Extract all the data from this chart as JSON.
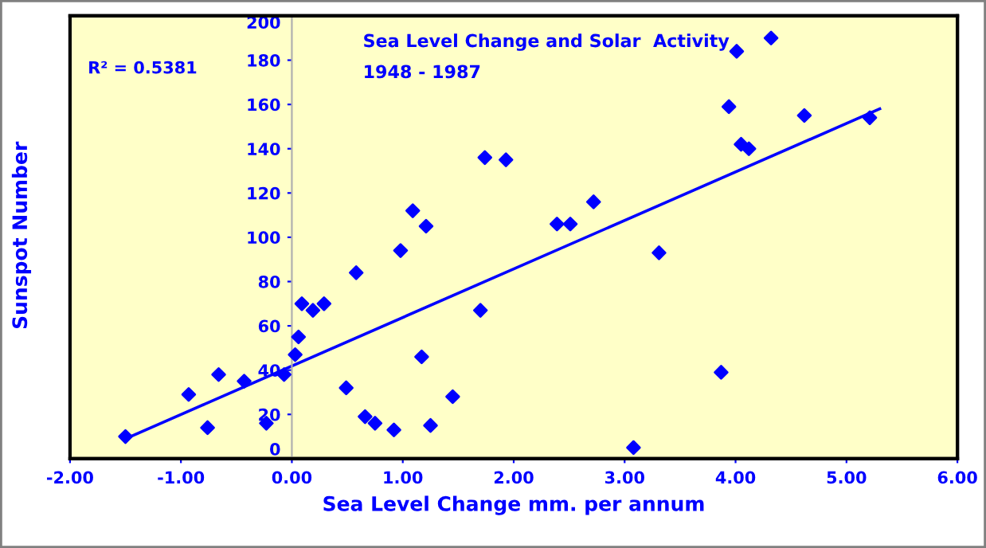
{
  "chart_data": {
    "type": "scatter",
    "title": "Sea Level Change and Solar  Activity",
    "subtitle": "1948 - 1987",
    "xlabel": "Sea Level Change mm. per annum",
    "ylabel": "Sunspot Number",
    "annotations": [
      "R² = 0.5381"
    ],
    "series": [
      {
        "type": "scatter",
        "color": "#0000ff",
        "marker": "diamond",
        "x": [
          -1.5,
          -0.93,
          -0.76,
          -0.66,
          -0.43,
          -0.23,
          -0.07,
          0.03,
          0.06,
          0.09,
          0.19,
          0.29,
          0.49,
          0.58,
          0.66,
          0.75,
          0.92,
          0.98,
          1.09,
          1.17,
          1.21,
          1.25,
          1.45,
          1.7,
          1.74,
          1.93,
          2.39,
          2.51,
          2.72,
          3.31,
          3.08,
          3.87,
          3.94,
          4.01,
          4.05,
          4.12,
          4.32,
          4.62,
          5.21
        ],
        "values": [
          10,
          29,
          14,
          38,
          35,
          16,
          38,
          47,
          55,
          70,
          67,
          70,
          32,
          84,
          19,
          16,
          13,
          94,
          112,
          46,
          105,
          15,
          28,
          67,
          136,
          135,
          106,
          106,
          116,
          93,
          5,
          39,
          159,
          184,
          142,
          140,
          190,
          155,
          154
        ]
      },
      {
        "type": "line",
        "color": "#0000ff",
        "line_style": "solid",
        "x": [
          -1.5,
          5.3
        ],
        "values": [
          9,
          158
        ]
      }
    ],
    "xlim": [
      -2,
      6
    ],
    "xticks": [
      {
        "value": -2,
        "label": "-2.00"
      },
      {
        "value": -1,
        "label": "-1.00"
      },
      {
        "value": 0,
        "label": "0.00"
      },
      {
        "value": 1,
        "label": "1.00"
      },
      {
        "value": 2,
        "label": "2.00"
      },
      {
        "value": 3,
        "label": "3.00"
      },
      {
        "value": 4,
        "label": "4.00"
      },
      {
        "value": 5,
        "label": "5.00"
      },
      {
        "value": 6,
        "label": "6.00"
      }
    ],
    "ylim": [
      0,
      200
    ],
    "yticks": [
      0,
      20,
      40,
      60,
      80,
      100,
      120,
      140,
      160,
      180,
      200
    ],
    "grid": false,
    "legend": false
  }
}
